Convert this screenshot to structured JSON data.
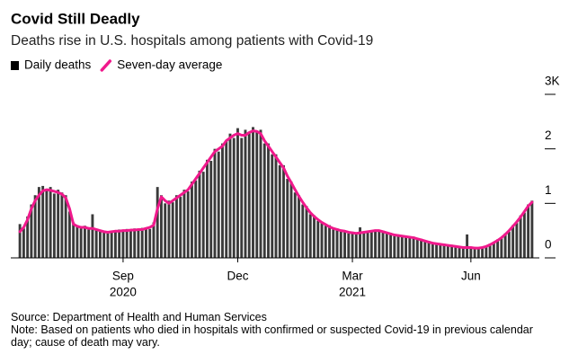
{
  "chart_data": {
    "type": "bar",
    "title": "Covid Still Deadly",
    "subtitle": "Deaths rise in U.S. hospitals among patients with Covid-19",
    "source": "Source: Department of Health and Human Services",
    "note": "Note: Based on patients who died in hospitals with confirmed or suspected Covid-19 in previous calendar day; cause of death may vary.",
    "categories": [
      null,
      null,
      null,
      null,
      null,
      null,
      null,
      null,
      null,
      null,
      null,
      null,
      null,
      null,
      null,
      null,
      null,
      null,
      null,
      null,
      null,
      null,
      null,
      null,
      null,
      null,
      null,
      "Sep",
      null,
      null,
      null,
      null,
      null,
      null,
      null,
      null,
      null,
      null,
      null,
      null,
      null,
      null,
      null,
      null,
      null,
      null,
      null,
      null,
      null,
      null,
      null,
      null,
      null,
      null,
      null,
      null,
      null,
      "Dec",
      null,
      null,
      null,
      null,
      null,
      null,
      null,
      null,
      null,
      null,
      null,
      null,
      null,
      null,
      null,
      null,
      null,
      null,
      null,
      null,
      null,
      null,
      null,
      null,
      null,
      null,
      null,
      null,
      null,
      "Mar",
      null,
      null,
      null,
      null,
      null,
      null,
      null,
      null,
      null,
      null,
      null,
      null,
      null,
      null,
      null,
      null,
      null,
      null,
      null,
      null,
      null,
      null,
      null,
      null,
      null,
      null,
      null,
      null,
      null,
      null,
      "Jun",
      null,
      null,
      null,
      null,
      null,
      null,
      null,
      null,
      null,
      null,
      null,
      null,
      null,
      null,
      null,
      null
    ],
    "category_years": [
      null,
      null,
      null,
      null,
      null,
      null,
      null,
      null,
      null,
      null,
      null,
      null,
      null,
      null,
      null,
      null,
      null,
      null,
      null,
      null,
      null,
      null,
      null,
      null,
      null,
      null,
      null,
      "2020",
      null,
      null,
      null,
      null,
      null,
      null,
      null,
      null,
      null,
      null,
      null,
      null,
      null,
      null,
      null,
      null,
      null,
      null,
      null,
      null,
      null,
      null,
      null,
      null,
      null,
      null,
      null,
      null,
      null,
      null,
      null,
      null,
      null,
      null,
      null,
      null,
      null,
      null,
      null,
      null,
      null,
      null,
      null,
      null,
      null,
      null,
      null,
      null,
      null,
      null,
      null,
      null,
      null,
      null,
      null,
      null,
      null,
      null,
      null,
      "2021",
      null,
      null,
      null,
      null,
      null,
      null,
      null,
      null,
      null,
      null,
      null,
      null,
      null,
      null,
      null,
      null,
      null,
      null,
      null,
      null,
      null,
      null,
      null,
      null,
      null,
      null,
      null,
      null,
      null,
      null,
      null,
      null,
      null,
      null,
      null,
      null,
      null,
      null,
      null,
      null,
      null,
      null,
      null,
      null,
      null,
      null,
      null
    ],
    "series": [
      {
        "name": "Daily deaths",
        "type": "bar",
        "color": "#3a3a3a",
        "values": [
          620,
          540,
          760,
          980,
          1150,
          1300,
          1320,
          1250,
          1300,
          1180,
          1250,
          1200,
          1150,
          850,
          650,
          600,
          540,
          590,
          520,
          800,
          530,
          480,
          500,
          450,
          500,
          470,
          520,
          480,
          530,
          490,
          540,
          500,
          550,
          560,
          530,
          650,
          1300,
          1150,
          1000,
          1050,
          1020,
          1150,
          1120,
          1250,
          1220,
          1400,
          1420,
          1600,
          1580,
          1800,
          1780,
          2000,
          1950,
          2100,
          2150,
          2280,
          2200,
          2380,
          2200,
          2350,
          2300,
          2400,
          2300,
          2350,
          2100,
          2100,
          1900,
          1900,
          1700,
          1700,
          1450,
          1400,
          1200,
          1150,
          980,
          950,
          800,
          780,
          680,
          660,
          590,
          600,
          520,
          540,
          480,
          510,
          450,
          480,
          440,
          560,
          460,
          500,
          470,
          520,
          490,
          500,
          450,
          460,
          400,
          430,
          390,
          410,
          370,
          390,
          340,
          350,
          300,
          310,
          260,
          280,
          240,
          260,
          220,
          240,
          200,
          220,
          180,
          430,
          180,
          200,
          170,
          200,
          200,
          260,
          270,
          340,
          360,
          450,
          480,
          600,
          640,
          780,
          830,
          980,
          1050
        ]
      },
      {
        "name": "Seven-day average",
        "type": "line",
        "color": "#f0198c",
        "values": [
          480,
          560,
          700,
          900,
          1050,
          1150,
          1230,
          1250,
          1240,
          1220,
          1200,
          1170,
          1100,
          900,
          620,
          580,
          560,
          560,
          540,
          540,
          520,
          500,
          480,
          470,
          480,
          490,
          490,
          500,
          500,
          510,
          510,
          520,
          520,
          540,
          560,
          600,
          900,
          1120,
          1050,
          1000,
          1050,
          1100,
          1150,
          1200,
          1250,
          1350,
          1450,
          1550,
          1650,
          1750,
          1850,
          1950,
          2000,
          2050,
          2150,
          2200,
          2250,
          2280,
          2250,
          2250,
          2300,
          2330,
          2320,
          2280,
          2150,
          2050,
          1950,
          1850,
          1750,
          1650,
          1500,
          1380,
          1250,
          1130,
          1020,
          920,
          830,
          760,
          700,
          650,
          610,
          570,
          540,
          520,
          500,
          490,
          470,
          460,
          450,
          460,
          470,
          480,
          490,
          500,
          500,
          480,
          460,
          440,
          420,
          410,
          400,
          390,
          380,
          370,
          350,
          330,
          310,
          290,
          270,
          260,
          250,
          240,
          230,
          220,
          210,
          200,
          190,
          190,
          190,
          180,
          180,
          190,
          210,
          240,
          280,
          320,
          370,
          430,
          500,
          580,
          660,
          750,
          850,
          950,
          1020
        ]
      }
    ],
    "ylim": [
      0,
      3000
    ],
    "yticks": [
      0,
      {
        "value": 1000,
        "label": "1"
      },
      {
        "value": 2000,
        "label": "2"
      },
      {
        "value": 3000,
        "label": "3K"
      }
    ]
  }
}
